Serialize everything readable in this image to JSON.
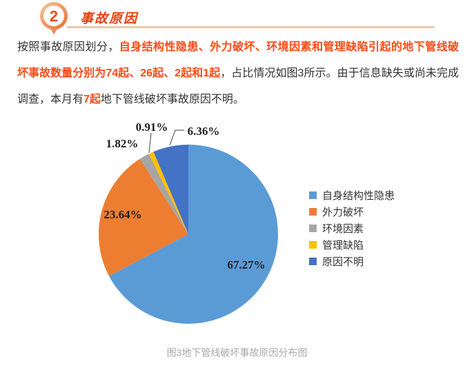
{
  "header": {
    "section_number": "2",
    "section_title": "事故原因"
  },
  "paragraph": {
    "segments": [
      {
        "style": "normal",
        "text": "按照事故原因划分，"
      },
      {
        "style": "highlight",
        "text": "自身结构性隐患、外力破坏、环境因素和管理缺陷引起的地下管线破坏事故数量分别为74起、26起、2起和1起"
      },
      {
        "style": "normal",
        "text": "，占比情况如图3所示。由于信息缺失或尚未完成调查，本月有"
      },
      {
        "style": "highlight",
        "text": "7起"
      },
      {
        "style": "normal",
        "text": "地下管线破坏事故原因不明。"
      }
    ]
  },
  "chart_data": {
    "type": "pie",
    "title": "图3地下管线破坏事故原因分布图",
    "legend_position": "right",
    "start_angle_deg": 0,
    "direction": "clockwise",
    "slices": [
      {
        "label": "自身结构性隐患",
        "value": 67.27,
        "pct_label": "67.27%",
        "color": "#5B9BD5"
      },
      {
        "label": "外力破坏",
        "value": 23.64,
        "pct_label": "23.64%",
        "color": "#ED7D31"
      },
      {
        "label": "环境因素",
        "value": 1.82,
        "pct_label": "1.82%",
        "color": "#A5A5A5"
      },
      {
        "label": "管理缺陷",
        "value": 0.91,
        "pct_label": "0.91%",
        "color": "#FFC000"
      },
      {
        "label": "原因不明",
        "value": 6.36,
        "pct_label": "6.36%",
        "color": "#4472C4"
      }
    ]
  },
  "colors": {
    "accent_red": "#FB4A16",
    "title_red": "#EE3E12",
    "underline_tan": "#EAC9A8",
    "caption_gray": "#A9A9A9"
  }
}
